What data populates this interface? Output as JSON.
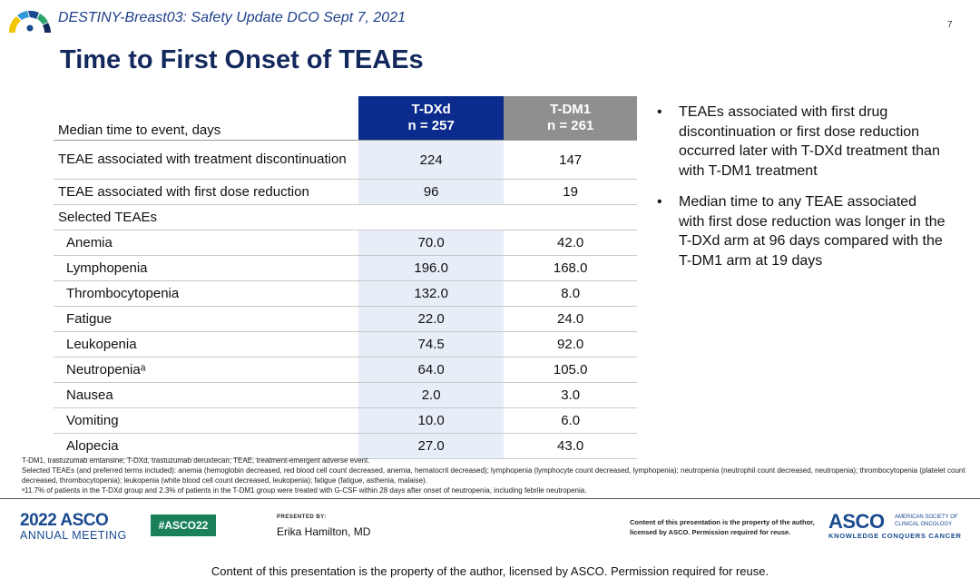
{
  "header": {
    "title": "DESTINY-Breast03: Safety Update DCO Sept 7, 2021",
    "page_number": "7",
    "slide_title": "Time to First Onset of TEAEs"
  },
  "table": {
    "row_header_label": "Median time to event, days",
    "columns": [
      {
        "name": "T-DXd",
        "n": "n = 257"
      },
      {
        "name": "T-DM1",
        "n": "n = 261"
      }
    ],
    "rows": [
      {
        "label": "TEAE associated with treatment discontinuation",
        "tdxd": "224",
        "tdm1": "147"
      },
      {
        "label": "TEAE associated with first dose reduction",
        "tdxd": "96",
        "tdm1": "19"
      }
    ],
    "section_label": "Selected TEAEs",
    "selected": [
      {
        "label": "Anemia",
        "tdxd": "70.0",
        "tdm1": "42.0"
      },
      {
        "label": "Lymphopenia",
        "tdxd": "196.0",
        "tdm1": "168.0"
      },
      {
        "label": "Thrombocytopenia",
        "tdxd": "132.0",
        "tdm1": "8.0"
      },
      {
        "label": "Fatigue",
        "tdxd": "22.0",
        "tdm1": "24.0"
      },
      {
        "label": "Leukopenia",
        "tdxd": "74.5",
        "tdm1": "92.0"
      },
      {
        "label": "Neutropeniaᵃ",
        "tdxd": "64.0",
        "tdm1": "105.0"
      },
      {
        "label": "Nausea",
        "tdxd": "2.0",
        "tdm1": "3.0"
      },
      {
        "label": "Vomiting",
        "tdxd": "10.0",
        "tdm1": "6.0"
      },
      {
        "label": "Alopecia",
        "tdxd": "27.0",
        "tdm1": "43.0"
      }
    ]
  },
  "bullets": [
    "TEAEs associated with first drug discontinuation or first dose reduction occurred later with T-DXd treatment than with T-DM1 treatment",
    "Median time to any TEAE associated with first dose reduction was longer in the T-DXd arm at 96 days compared with the T-DM1 arm at 19 days"
  ],
  "footnotes": [
    "T-DM1, trastuzumab emtansine; T-DXd, trastuzumab deruxtecan; TEAE, treatment-emergent adverse event.",
    "Selected TEAEs (and preferred terms included): anemia (hemoglobin decreased, red blood cell count decreased, anemia, hematocrit decreased); lymphopenia (lymphocyte count decreased, lymphopenia); neutropenia (neutrophil count decreased, neutropenia); thrombocytopenia (platelet count decreased, thrombocytopenia); leukopenia (white blood cell count decreased, leukopenia); fatigue (fatigue, asthenia, malaise).",
    "ᵃ11.7% of patients in the T-DXd group and 2.3% of patients in the T-DM1 group were treated with G-CSF within 28 days after onset of neutropenia, including febrile neutropenia."
  ],
  "footer": {
    "meeting_year_brand": "2022 ASCO",
    "meeting_label": "ANNUAL MEETING",
    "hashtag": "#ASCO22",
    "presented_by_label": "PRESENTED BY:",
    "presenter": "Erika Hamilton, MD",
    "copyright_small": "Content of this presentation is the property of the author, licensed by ASCO. Permission required for reuse.",
    "org_brand": "ASCO",
    "org_name": "AMERICAN SOCIETY OF CLINICAL ONCOLOGY",
    "org_tagline": "KNOWLEDGE CONQUERS CANCER",
    "bottom_note": "Content of this presentation is the property of the author, licensed by ASCO. Permission required for reuse."
  },
  "colors": {
    "title_navy": "#13285c",
    "tdxd_header": "#0b2c8c",
    "tdm1_header": "#8f8f8f",
    "tdxd_column_fill": "#e7eef8",
    "hashtag_green": "#19805a"
  }
}
